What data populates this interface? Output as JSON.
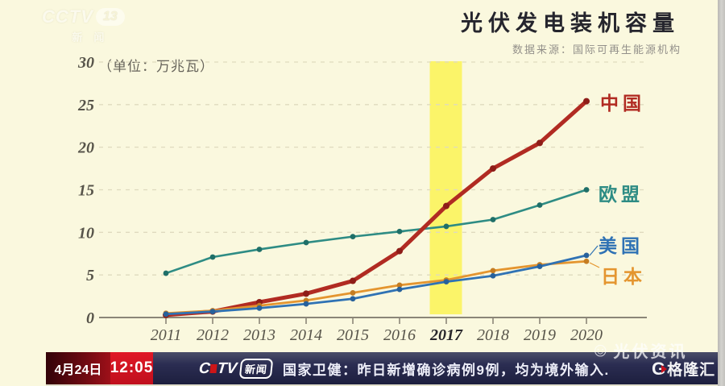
{
  "station_logo": {
    "brand": "CCTV",
    "channel": "13",
    "caption": "新闻"
  },
  "chart": {
    "title": "光伏发电装机容量",
    "source": "数据来源：国际可再生能源机构",
    "unit": "（单位：万兆瓦）"
  },
  "chart_data": {
    "type": "line",
    "x": [
      2011,
      2012,
      2013,
      2014,
      2015,
      2016,
      2017,
      2018,
      2019,
      2020
    ],
    "series": [
      {
        "name": "中国",
        "color": "#B12B22",
        "dot_color": "#8E1D18",
        "line_width": 5,
        "values": [
          0.3,
          0.7,
          1.8,
          2.8,
          4.3,
          7.8,
          13.1,
          17.5,
          20.5,
          25.4
        ]
      },
      {
        "name": "欧盟",
        "color": "#2E8C84",
        "dot_color": "#1F6F68",
        "line_width": 2.6,
        "values": [
          5.2,
          7.1,
          8.0,
          8.8,
          9.5,
          10.1,
          10.7,
          11.5,
          13.2,
          15.0
        ]
      },
      {
        "name": "美国",
        "color": "#2F72B4",
        "dot_color": "#27619B",
        "line_width": 2.8,
        "values": [
          0.4,
          0.7,
          1.1,
          1.6,
          2.2,
          3.3,
          4.2,
          4.9,
          6.0,
          7.3
        ]
      },
      {
        "name": "日本",
        "color": "#E4952F",
        "dot_color": "#C57D22",
        "line_width": 2.8,
        "values": [
          0.5,
          0.8,
          1.4,
          2.0,
          2.9,
          3.8,
          4.4,
          5.5,
          6.2,
          6.6
        ]
      }
    ],
    "ylim": [
      0,
      30
    ],
    "yticks": [
      0,
      5,
      10,
      15,
      20,
      25,
      30
    ],
    "xtick_labels": [
      "2011",
      "2012",
      "2013",
      "2014",
      "2015",
      "2016",
      "2017",
      "2018",
      "2019",
      "2020"
    ],
    "highlight_year": "2017",
    "highlight_color": "#FBF35C",
    "grid": "dashed-horizontal",
    "legend_position": "right-of-line-ends",
    "background_color": "#FAF8DE"
  },
  "ticker": {
    "date": "4月24日",
    "time": "12:05",
    "channel_brand": "CCTV",
    "channel_caption": "新闻",
    "headline": "国家卫健：昨日新增确诊病例9例，均为境外输入."
  },
  "watermarks": {
    "pv_info": "光伏资讯",
    "gelonghui": "格隆汇",
    "gelonghui_initial": "G"
  }
}
